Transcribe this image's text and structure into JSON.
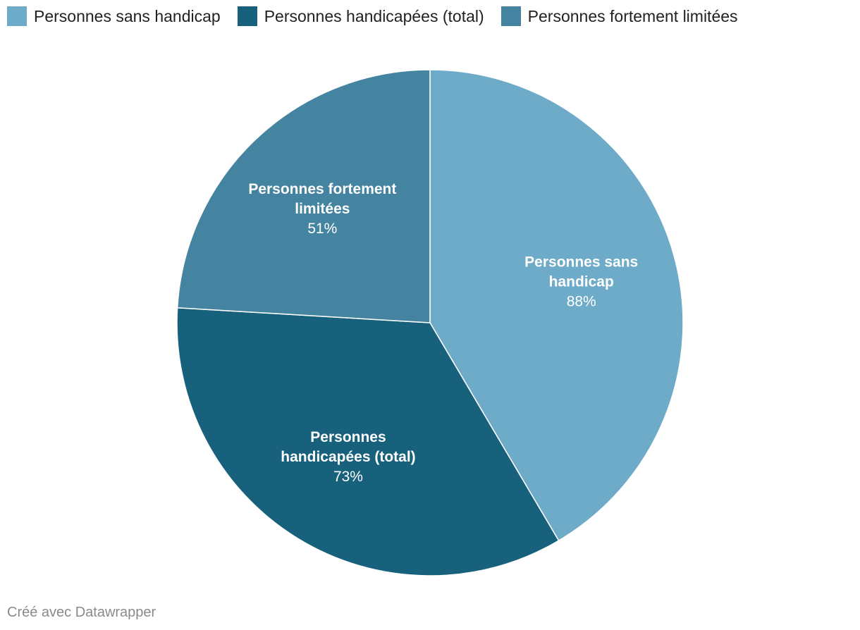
{
  "legend": [
    {
      "label": "Personnes sans handicap",
      "color": "#6eabc9"
    },
    {
      "label": "Personnes handicapées (total)",
      "color": "#17617c"
    },
    {
      "label": "Personnes fortement limitées",
      "color": "#4584a1"
    }
  ],
  "chart_data": {
    "type": "pie",
    "title": "",
    "slices": [
      {
        "label_lines": [
          "Personnes sans",
          "handicap"
        ],
        "value_label": "88%",
        "value": 88,
        "color": "#6eabc9"
      },
      {
        "label_lines": [
          "Personnes",
          "handicapées (total)"
        ],
        "value_label": "73%",
        "value": 73,
        "color": "#17617c"
      },
      {
        "label_lines": [
          "Personnes fortement",
          "limitées"
        ],
        "value_label": "51%",
        "value": 51,
        "color": "#4584a1"
      }
    ],
    "start": "top",
    "direction": "clockwise"
  },
  "credit": "Créé avec Datawrapper"
}
